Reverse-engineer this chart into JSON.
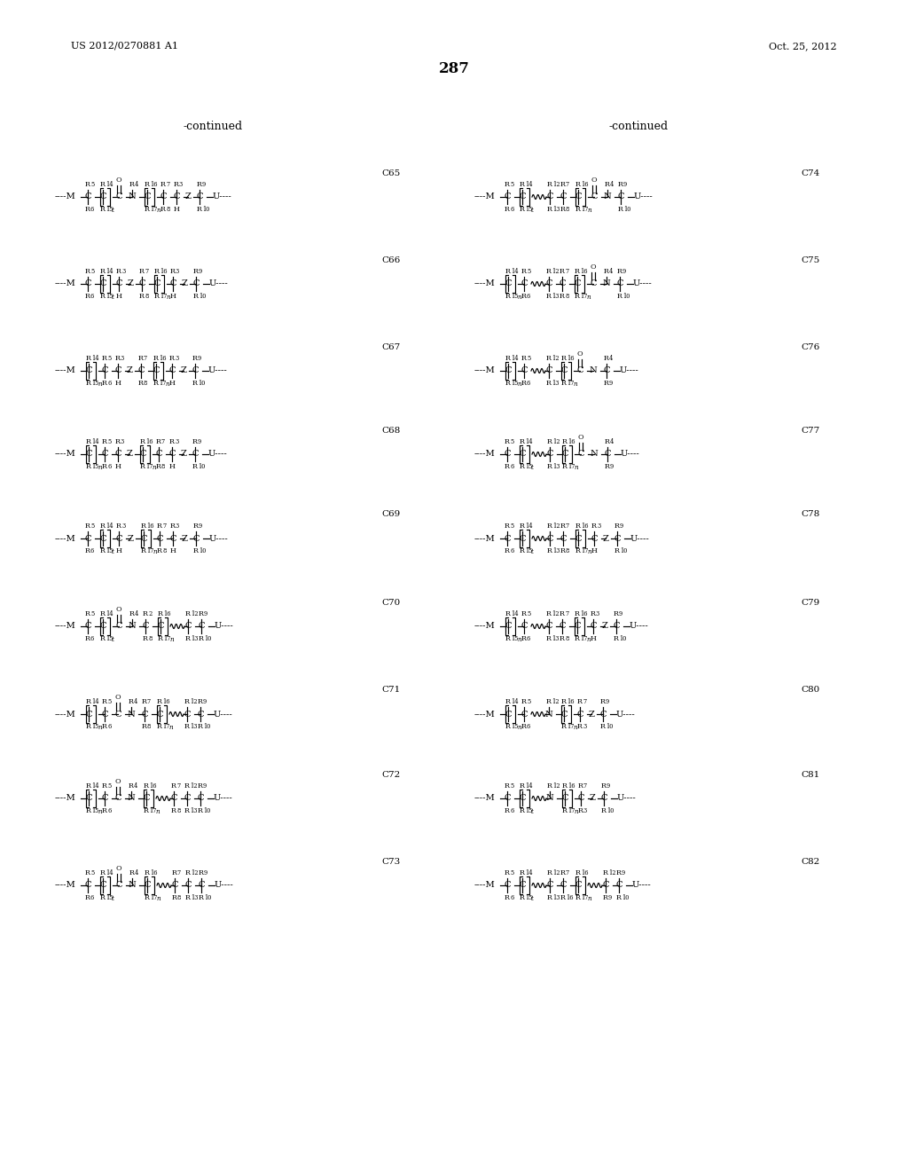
{
  "page_number": "287",
  "patent_left": "US 2012/0270881 A1",
  "patent_right": "Oct. 25, 2012",
  "continued_left": "-continued",
  "continued_right": "-continued",
  "background": "#ffffff",
  "left_ids": [
    "C65",
    "C66",
    "C67",
    "C68",
    "C69",
    "C70",
    "C71",
    "C72",
    "C73"
  ],
  "right_ids": [
    "C74",
    "C75",
    "C76",
    "C77",
    "C78",
    "C79",
    "C80",
    "C81",
    "C82"
  ]
}
